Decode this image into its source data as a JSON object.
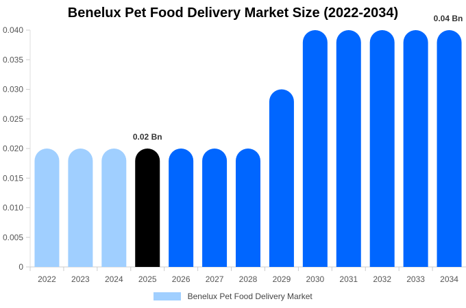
{
  "chart_data": {
    "type": "bar",
    "title": "Benelux Pet Food Delivery Market Size (2022-2034)",
    "categories": [
      "2022",
      "2023",
      "2024",
      "2025",
      "2026",
      "2027",
      "2028",
      "2029",
      "2030",
      "2031",
      "2032",
      "2033",
      "2034"
    ],
    "series": [
      {
        "name": "Benelux Pet Food Delivery Market",
        "values": [
          0.02,
          0.02,
          0.02,
          0.02,
          0.02,
          0.02,
          0.02,
          0.03,
          0.04,
          0.04,
          0.04,
          0.04,
          0.04
        ]
      }
    ],
    "ylim": [
      0,
      0.04
    ],
    "yticks": [
      "0",
      "0.005",
      "0.010",
      "0.015",
      "0.020",
      "0.025",
      "0.030",
      "0.035",
      "0.040"
    ],
    "data_labels": [
      {
        "category": "2025",
        "text": "0.02 Bn"
      },
      {
        "category": "2034",
        "text": "0.04 Bn"
      }
    ],
    "colors": {
      "historical": "#a0cfff",
      "current": "#000000",
      "forecast": "#0066ff"
    },
    "highlight_category": "2025",
    "grid": false,
    "legend_position": "bottom"
  }
}
